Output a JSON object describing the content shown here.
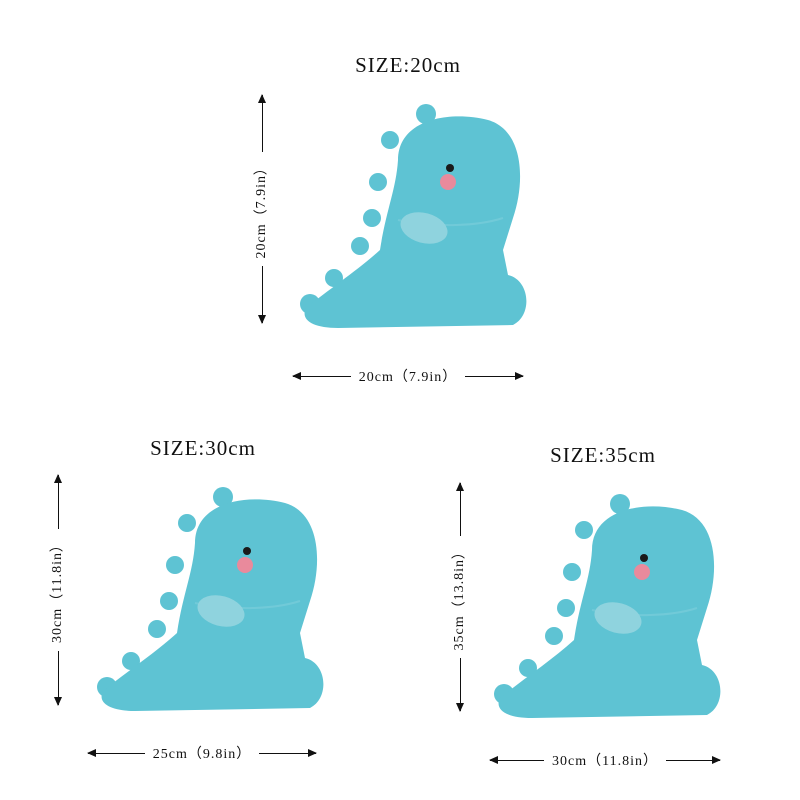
{
  "colors": {
    "plush": "#5ec3d3",
    "cheek": "#e98a9c",
    "eye": "#1a1a1a"
  },
  "panels": [
    {
      "title": "SIZE:20cm",
      "height_label": "20cm（7.9in）",
      "width_label": "20cm（7.9in）"
    },
    {
      "title": "SIZE:30cm",
      "height_label": "30cm（11.8in）",
      "width_label": "25cm（9.8in）"
    },
    {
      "title": "SIZE:35cm",
      "height_label": "35cm（13.8in）",
      "width_label": "30cm（11.8in）"
    }
  ]
}
